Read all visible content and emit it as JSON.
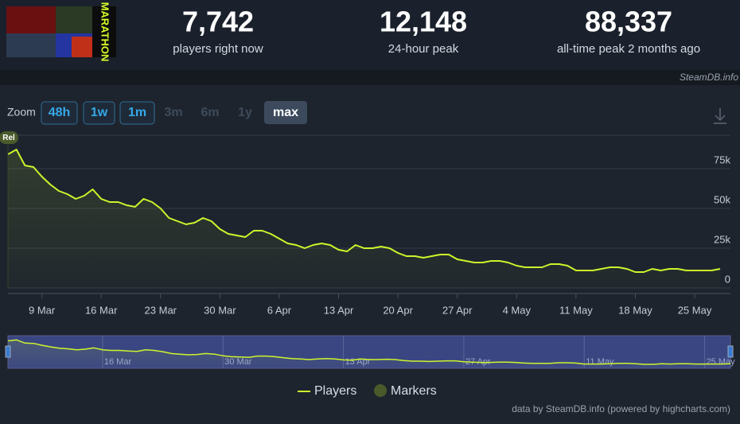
{
  "header": {
    "game_logo_text": "MARATHON",
    "stats": [
      {
        "value": "7,742",
        "label": "players right now"
      },
      {
        "value": "12,148",
        "label": "24-hour peak"
      },
      {
        "value": "88,337",
        "label": "all-time peak 2 months ago"
      }
    ],
    "source": "SteamDB.info"
  },
  "zoom": {
    "label": "Zoom",
    "buttons": [
      "48h",
      "1w",
      "1m",
      "3m",
      "6m",
      "1y",
      "max"
    ]
  },
  "chart_data": {
    "type": "line",
    "x": [
      "5 Mar",
      "6 Mar",
      "7 Mar",
      "8 Mar",
      "9 Mar",
      "10 Mar",
      "11 Mar",
      "12 Mar",
      "13 Mar",
      "14 Mar",
      "15 Mar",
      "16 Mar",
      "17 Mar",
      "18 Mar",
      "19 Mar",
      "20 Mar",
      "21 Mar",
      "22 Mar",
      "23 Mar",
      "24 Mar",
      "25 Mar",
      "26 Mar",
      "27 Mar",
      "28 Mar",
      "29 Mar",
      "30 Mar",
      "31 Mar",
      "1 Apr",
      "2 Apr",
      "3 Apr",
      "4 Apr",
      "5 Apr",
      "6 Apr",
      "7 Apr",
      "8 Apr",
      "9 Apr",
      "10 Apr",
      "11 Apr",
      "12 Apr",
      "13 Apr",
      "14 Apr",
      "15 Apr",
      "16 Apr",
      "17 Apr",
      "18 Apr",
      "19 Apr",
      "20 Apr",
      "21 Apr",
      "22 Apr",
      "23 Apr",
      "24 Apr",
      "25 Apr",
      "26 Apr",
      "27 Apr",
      "28 Apr",
      "29 Apr",
      "30 Apr",
      "1 May",
      "2 May",
      "3 May",
      "4 May",
      "5 May",
      "6 May",
      "7 May",
      "8 May",
      "9 May",
      "10 May",
      "11 May",
      "12 May",
      "13 May",
      "14 May",
      "15 May",
      "16 May",
      "17 May",
      "18 May",
      "19 May",
      "20 May",
      "21 May",
      "22 May",
      "23 May",
      "24 May",
      "25 May",
      "26 May",
      "27 May",
      "28 May"
    ],
    "series": [
      {
        "name": "Players",
        "color": "#cdf52b",
        "values": [
          84000,
          87000,
          77000,
          76000,
          70000,
          65000,
          61000,
          59000,
          56000,
          58000,
          62000,
          56000,
          54000,
          54000,
          52000,
          51000,
          56000,
          54000,
          50000,
          44000,
          42000,
          40000,
          41000,
          44000,
          42000,
          37000,
          34000,
          33000,
          32000,
          36000,
          36000,
          34000,
          31000,
          28000,
          27000,
          25000,
          27000,
          28000,
          27000,
          24000,
          23000,
          27000,
          25000,
          25000,
          26000,
          25000,
          22000,
          20000,
          20000,
          19000,
          20000,
          21000,
          21000,
          18000,
          17000,
          16000,
          16000,
          17000,
          17000,
          16000,
          14000,
          13000,
          13000,
          13000,
          15000,
          15000,
          14000,
          11000,
          11000,
          11000,
          12000,
          13000,
          13000,
          12000,
          10000,
          10000,
          12000,
          11000,
          12000,
          12000,
          11000,
          11000,
          11000,
          11000,
          12000
        ]
      }
    ],
    "markers": {
      "name": "Markers",
      "color": "#4a5a2a",
      "items": [
        {
          "x": "5 Mar",
          "label": "Rel"
        }
      ]
    },
    "ylim": [
      0,
      100000
    ],
    "yticks": [
      0,
      {
        "value": 25000,
        "label": "25k"
      },
      {
        "value": 50000,
        "label": "50k"
      },
      {
        "value": 75000,
        "label": "75k"
      }
    ],
    "xticks": [
      "9 Mar",
      "16 Mar",
      "23 Mar",
      "30 Mar",
      "6 Apr",
      "13 Apr",
      "20 Apr",
      "27 Apr",
      "4 May",
      "11 May",
      "18 May",
      "25 May"
    ],
    "navigator_xticks": [
      "16 Mar",
      "30 Mar",
      "13 Apr",
      "27 Apr",
      "11 May",
      "25 May"
    ],
    "grid": true,
    "credits": "data by SteamDB.info (powered by highcharts.com)"
  }
}
